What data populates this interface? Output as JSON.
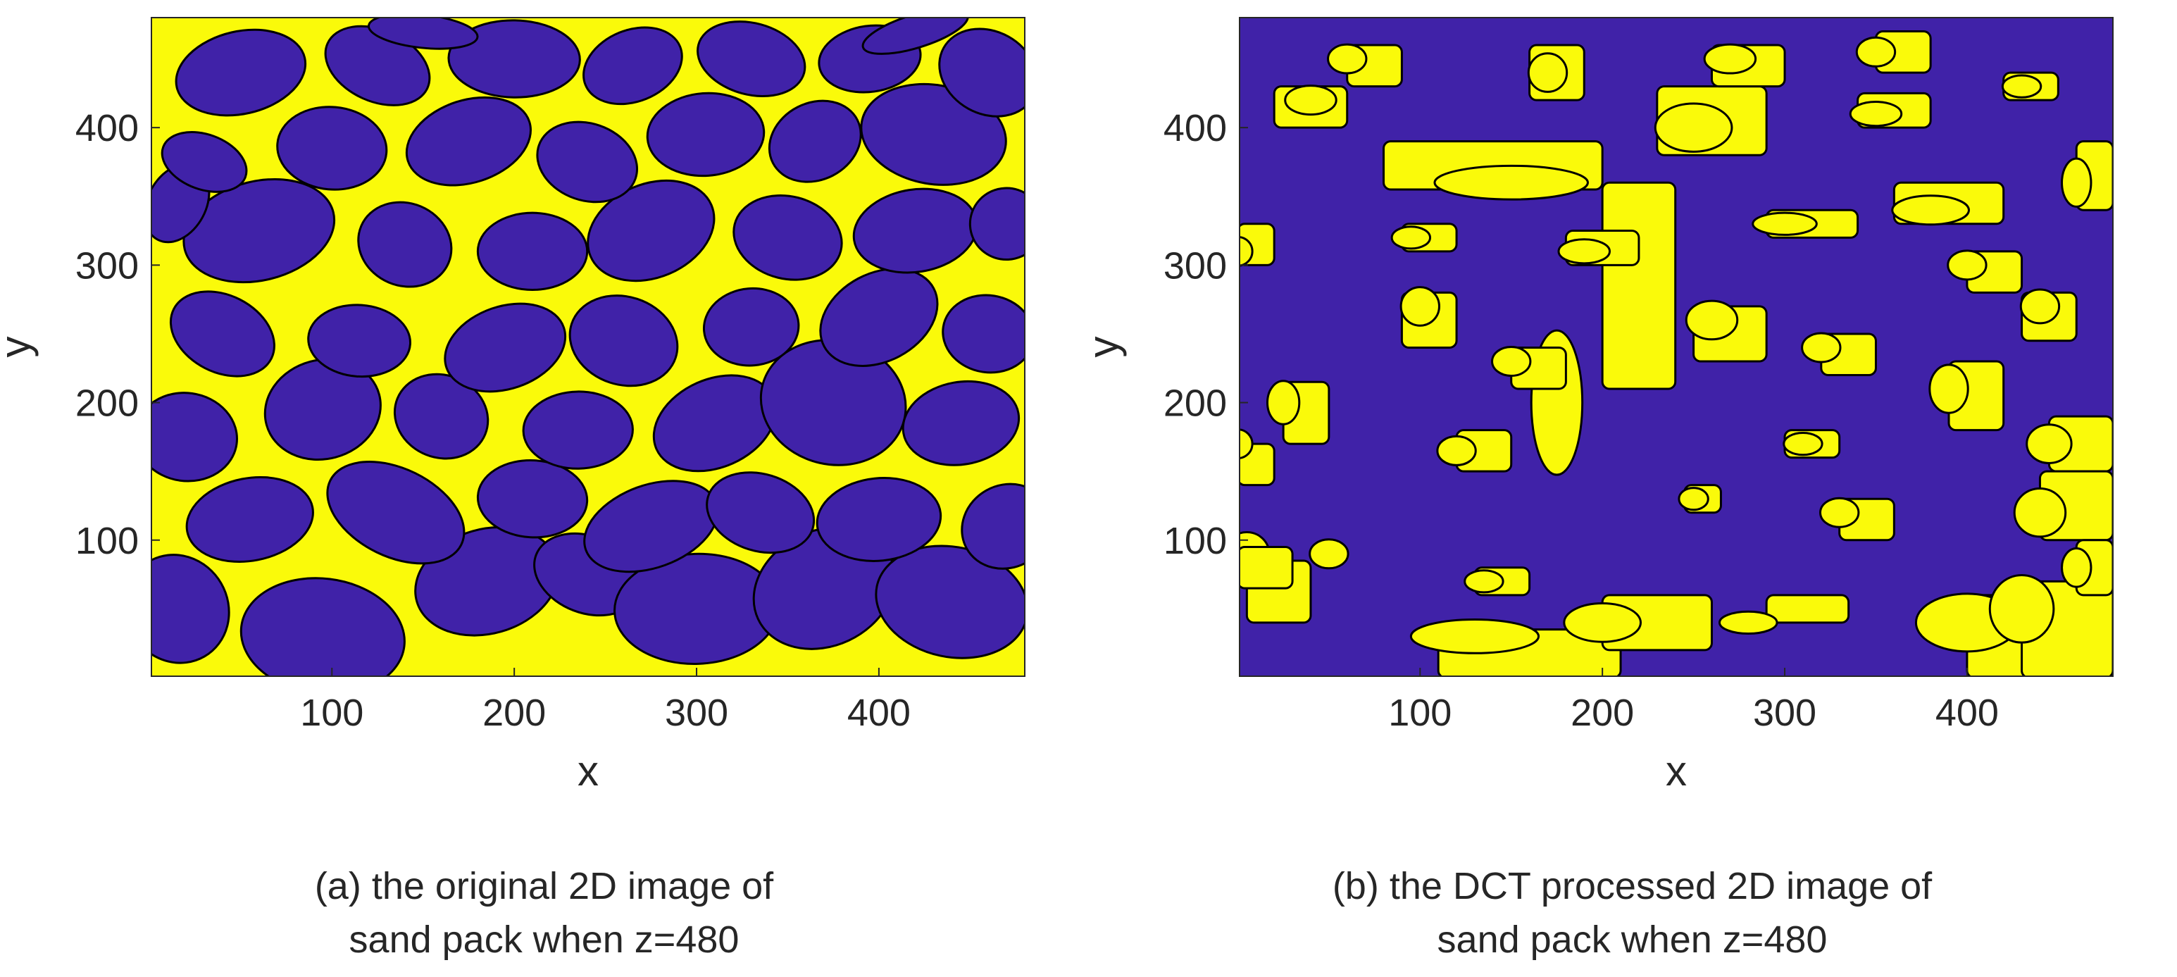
{
  "colors": {
    "grain": "#4022a8",
    "pore": "#fafa0a",
    "edge": "#000000",
    "text": "#262626"
  },
  "chart_data": [
    {
      "type": "heatmap",
      "xlabel": "x",
      "ylabel": "y",
      "xlim": [
        1,
        480
      ],
      "ylim": [
        1,
        480
      ],
      "xticks": [
        "100",
        "200",
        "300",
        "400"
      ],
      "yticks": [
        "100",
        "200",
        "300",
        "400"
      ],
      "caption_lines": [
        "(a) the original 2D image of",
        "sand pack when z=480"
      ],
      "grains": [
        [
          15,
          50,
          28,
          40
        ],
        [
          95,
          30,
          45,
          42
        ],
        [
          185,
          70,
          40,
          38
        ],
        [
          240,
          75,
          30,
          28
        ],
        [
          300,
          50,
          45,
          40
        ],
        [
          370,
          65,
          40,
          42
        ],
        [
          440,
          55,
          42,
          40
        ],
        [
          55,
          115,
          35,
          30
        ],
        [
          135,
          120,
          40,
          32
        ],
        [
          210,
          130,
          30,
          28
        ],
        [
          275,
          110,
          38,
          30
        ],
        [
          335,
          120,
          30,
          28
        ],
        [
          400,
          115,
          34,
          30
        ],
        [
          470,
          110,
          25,
          30
        ],
        [
          20,
          175,
          28,
          32
        ],
        [
          95,
          195,
          32,
          36
        ],
        [
          160,
          190,
          26,
          30
        ],
        [
          235,
          180,
          30,
          28
        ],
        [
          310,
          185,
          35,
          32
        ],
        [
          375,
          200,
          40,
          45
        ],
        [
          445,
          185,
          32,
          30
        ],
        [
          40,
          250,
          30,
          28
        ],
        [
          115,
          245,
          28,
          26
        ],
        [
          195,
          240,
          34,
          30
        ],
        [
          260,
          245,
          30,
          32
        ],
        [
          330,
          255,
          26,
          28
        ],
        [
          400,
          262,
          34,
          32
        ],
        [
          460,
          250,
          25,
          28
        ],
        [
          60,
          325,
          42,
          36
        ],
        [
          140,
          315,
          26,
          30
        ],
        [
          210,
          310,
          30,
          28
        ],
        [
          275,
          325,
          36,
          34
        ],
        [
          350,
          320,
          30,
          30
        ],
        [
          420,
          325,
          34,
          30
        ],
        [
          15,
          345,
          16,
          30
        ],
        [
          100,
          385,
          30,
          30
        ],
        [
          175,
          390,
          35,
          30
        ],
        [
          240,
          375,
          28,
          28
        ],
        [
          305,
          395,
          32,
          30
        ],
        [
          365,
          390,
          26,
          28
        ],
        [
          430,
          395,
          40,
          36
        ],
        [
          50,
          440,
          36,
          30
        ],
        [
          125,
          445,
          30,
          26
        ],
        [
          200,
          450,
          36,
          28
        ],
        [
          265,
          445,
          28,
          26
        ],
        [
          330,
          450,
          30,
          26
        ],
        [
          395,
          450,
          28,
          24
        ],
        [
          460,
          440,
          28,
          30
        ],
        [
          150,
          470,
          30,
          12
        ],
        [
          420,
          470,
          30,
          12
        ],
        [
          30,
          375,
          24,
          20
        ],
        [
          470,
          330,
          20,
          26
        ]
      ]
    },
    {
      "type": "heatmap",
      "xlabel": "x",
      "ylabel": "y",
      "xlim": [
        1,
        480
      ],
      "ylim": [
        1,
        480
      ],
      "xticks": [
        "100",
        "200",
        "300",
        "400"
      ],
      "yticks": [
        "100",
        "200",
        "300",
        "400"
      ],
      "caption_lines": [
        "(b) the DCT processed 2D image of",
        "sand pack when z=480"
      ],
      "blobs": [
        [
          5,
          40,
          35,
          45,
          5,
          90
        ],
        [
          0,
          65,
          30,
          30,
          50,
          90
        ],
        [
          110,
          0,
          100,
          35,
          130,
          30
        ],
        [
          200,
          20,
          60,
          40,
          200,
          40
        ],
        [
          290,
          40,
          45,
          20,
          280,
          40
        ],
        [
          400,
          0,
          80,
          60,
          400,
          40
        ],
        [
          430,
          0,
          50,
          70,
          430,
          50
        ],
        [
          0,
          140,
          20,
          30,
          0,
          170
        ],
        [
          25,
          170,
          25,
          45,
          25,
          200
        ],
        [
          200,
          210,
          40,
          150,
          175,
          200
        ],
        [
          150,
          210,
          30,
          30,
          150,
          230
        ],
        [
          90,
          240,
          30,
          40,
          100,
          270
        ],
        [
          320,
          220,
          30,
          30,
          320,
          240
        ],
        [
          390,
          180,
          30,
          50,
          390,
          210
        ],
        [
          445,
          150,
          35,
          40,
          445,
          170
        ],
        [
          430,
          245,
          30,
          35,
          440,
          270
        ],
        [
          440,
          100,
          40,
          50,
          440,
          120
        ],
        [
          250,
          230,
          40,
          40,
          260,
          260
        ],
        [
          300,
          160,
          30,
          20,
          310,
          170
        ],
        [
          120,
          150,
          30,
          30,
          120,
          165
        ],
        [
          80,
          355,
          120,
          35,
          150,
          360
        ],
        [
          230,
          380,
          60,
          50,
          250,
          400
        ],
        [
          290,
          320,
          50,
          20,
          300,
          330
        ],
        [
          360,
          330,
          60,
          30,
          380,
          340
        ],
        [
          400,
          280,
          30,
          30,
          400,
          300
        ],
        [
          20,
          400,
          40,
          30,
          40,
          420
        ],
        [
          60,
          430,
          30,
          30,
          60,
          450
        ],
        [
          160,
          420,
          30,
          40,
          170,
          440
        ],
        [
          260,
          430,
          40,
          30,
          270,
          450
        ],
        [
          350,
          440,
          30,
          30,
          350,
          455
        ],
        [
          460,
          340,
          20,
          50,
          460,
          360
        ],
        [
          420,
          420,
          30,
          20,
          430,
          430
        ],
        [
          0,
          300,
          20,
          30,
          0,
          310
        ],
        [
          90,
          310,
          30,
          20,
          95,
          320
        ],
        [
          340,
          400,
          40,
          25,
          350,
          410
        ],
        [
          180,
          300,
          40,
          25,
          190,
          310
        ],
        [
          330,
          100,
          30,
          30,
          330,
          120
        ],
        [
          460,
          60,
          20,
          40,
          460,
          80
        ],
        [
          245,
          120,
          20,
          20,
          250,
          130
        ],
        [
          130,
          60,
          30,
          20,
          135,
          70
        ]
      ]
    }
  ]
}
